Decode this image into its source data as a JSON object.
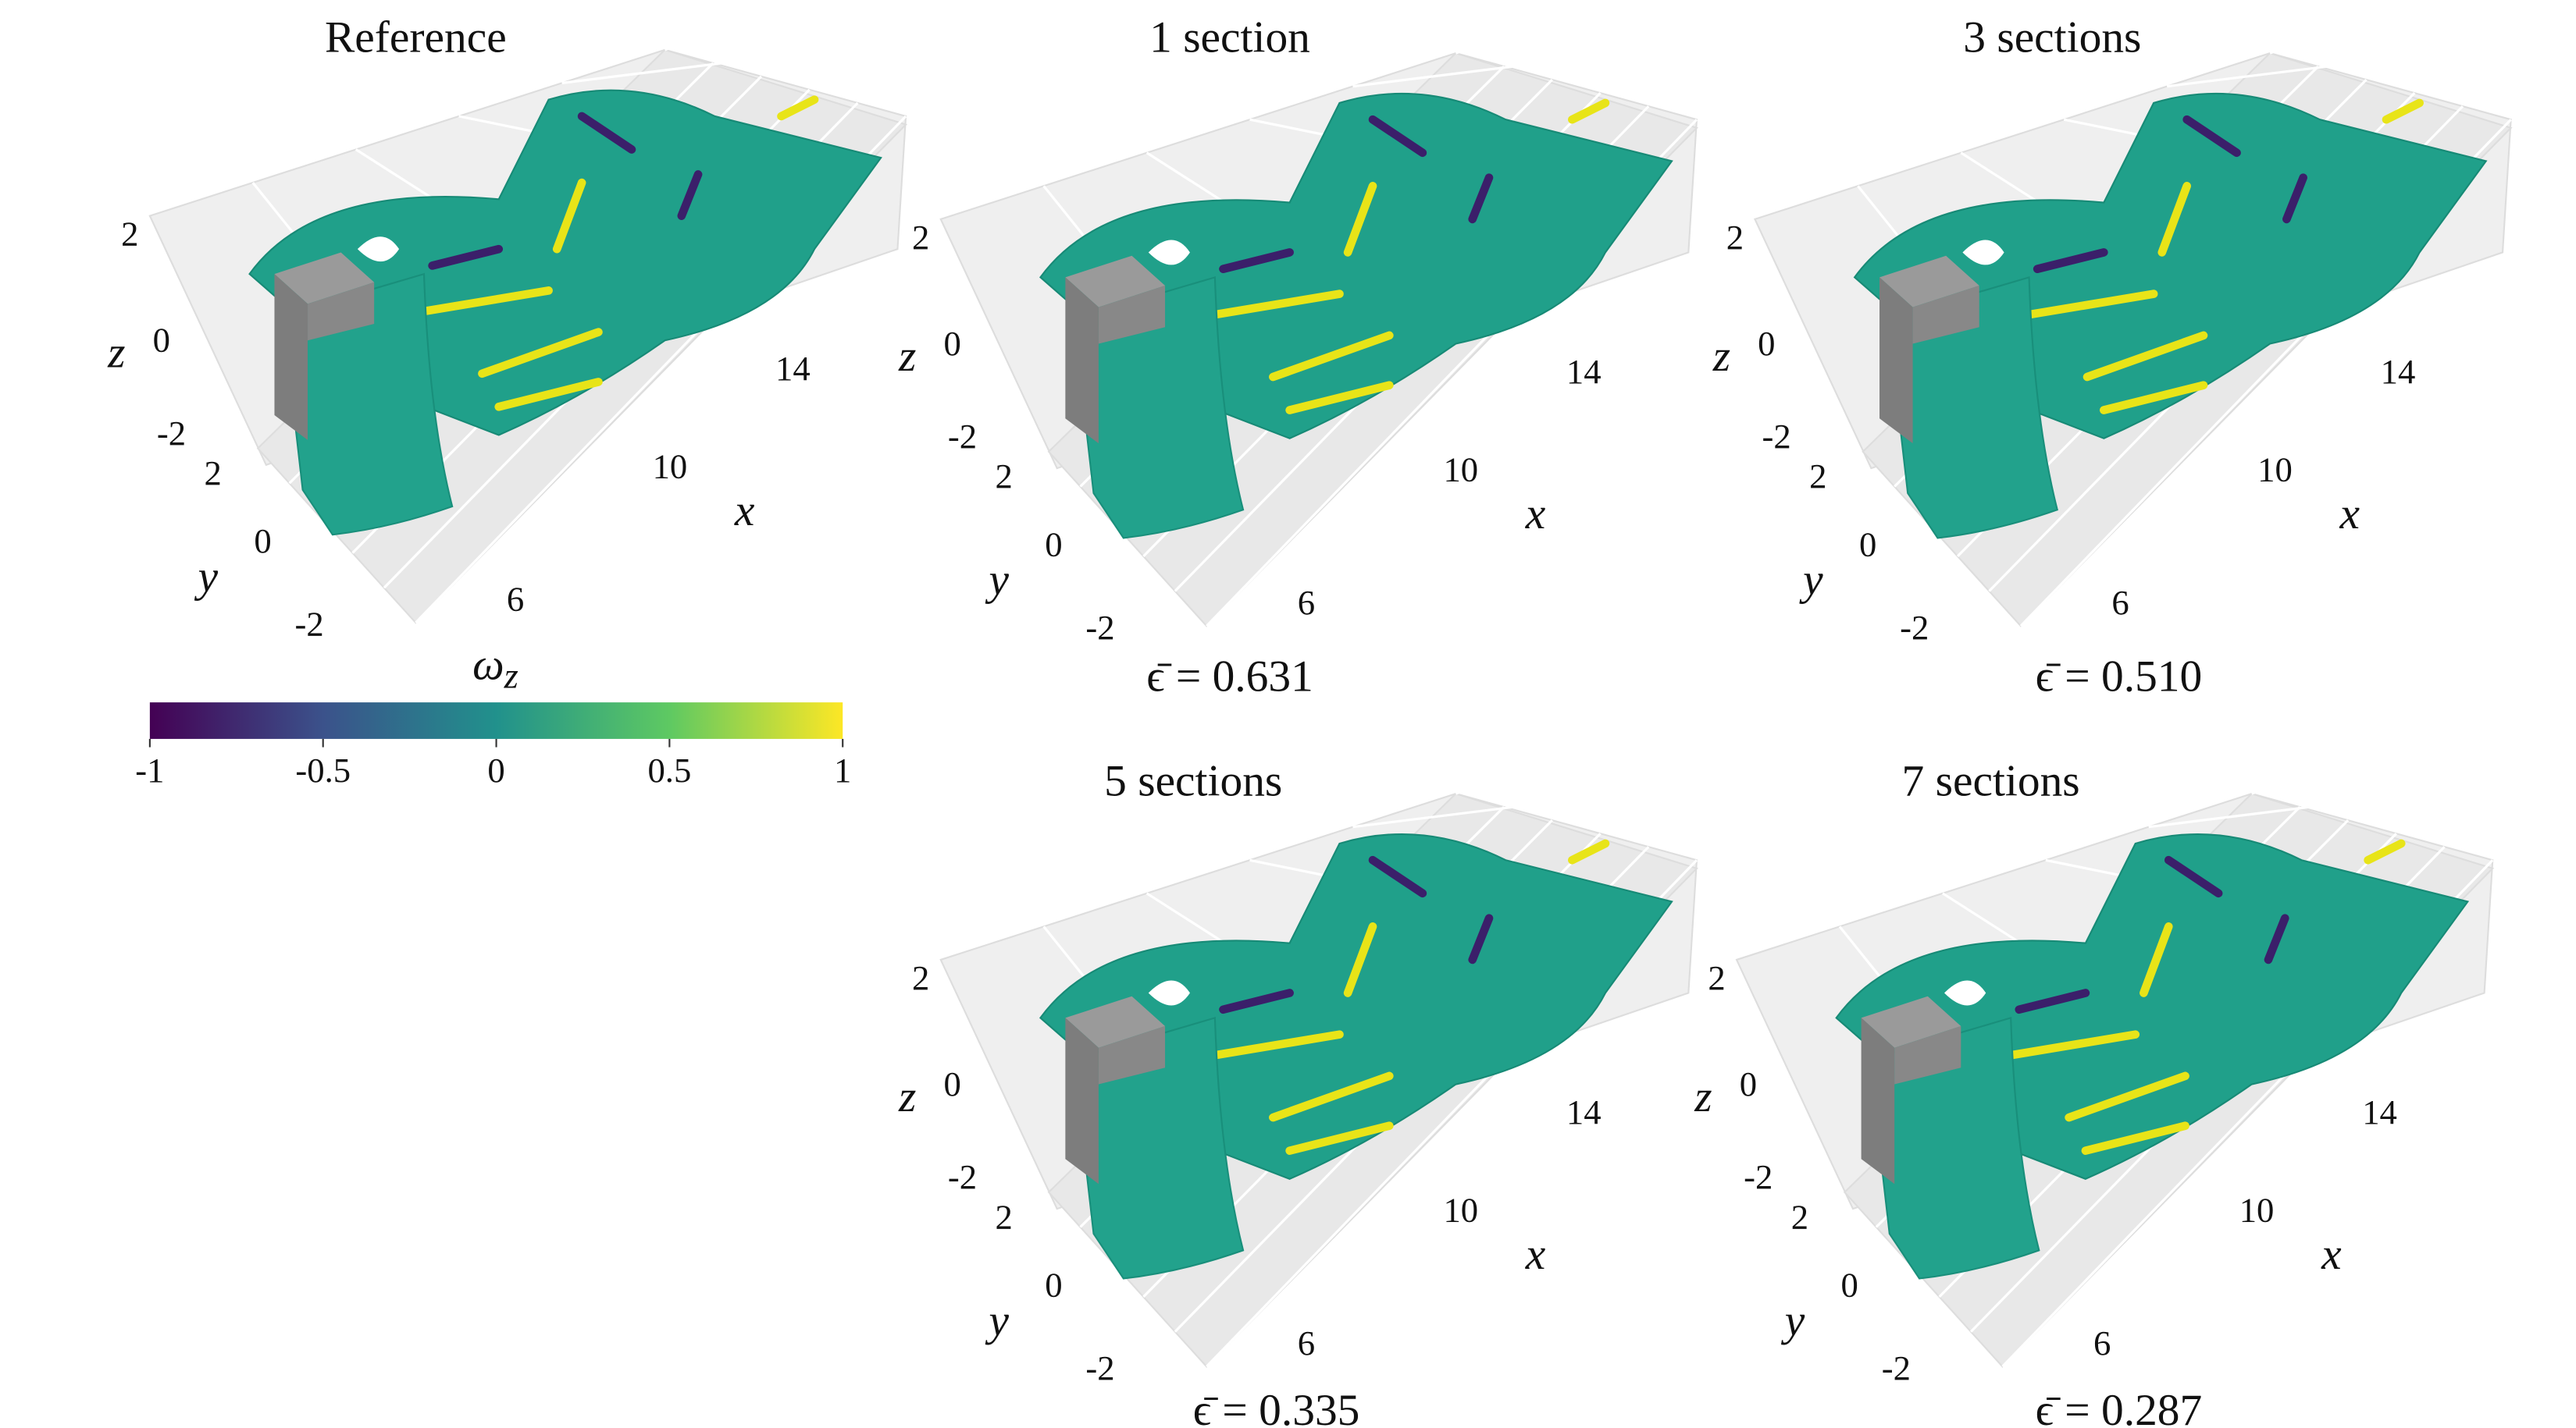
{
  "panels": [
    {
      "title": "Reference",
      "z_label": "z",
      "y_label": "y",
      "x_label": "x",
      "z_ticks": [
        2,
        0,
        -2
      ],
      "y_ticks": [
        2,
        0,
        -2
      ],
      "x_ticks": [
        6,
        10,
        14
      ]
    },
    {
      "title": "1 section",
      "z_label": "z",
      "y_label": "y",
      "x_label": "x",
      "z_ticks": [
        2,
        0,
        -2
      ],
      "y_ticks": [
        2,
        0,
        -2
      ],
      "x_ticks": [
        6,
        10,
        14
      ],
      "error": "ϵ̄ = 0.631"
    },
    {
      "title": "3 sections",
      "z_label": "z",
      "y_label": "y",
      "x_label": "x",
      "z_ticks": [
        2,
        0,
        -2
      ],
      "y_ticks": [
        2,
        0,
        -2
      ],
      "x_ticks": [
        6,
        10,
        14
      ],
      "error": "ϵ̄ = 0.510"
    },
    {
      "title": "5 sections",
      "z_label": "z",
      "y_label": "y",
      "x_label": "x",
      "z_ticks": [
        2,
        0,
        -2
      ],
      "y_ticks": [
        2,
        0,
        -2
      ],
      "x_ticks": [
        6,
        10,
        14
      ],
      "error": "ϵ̄ = 0.335"
    },
    {
      "title": "7 sections",
      "z_label": "z",
      "y_label": "y",
      "x_label": "x",
      "z_ticks": [
        2,
        0,
        -2
      ],
      "y_ticks": [
        2,
        0,
        -2
      ],
      "x_ticks": [
        6,
        10,
        14
      ],
      "error": "ϵ̄ = 0.287"
    }
  ],
  "colorbar": {
    "symbol": "ω",
    "subscript": "z",
    "range": [
      -1,
      1
    ],
    "ticks": [
      -1,
      -0.5,
      0,
      0.5,
      1
    ],
    "colors": [
      "#440154",
      "#3b528b",
      "#21918c",
      "#5ec962",
      "#fde725"
    ]
  }
}
